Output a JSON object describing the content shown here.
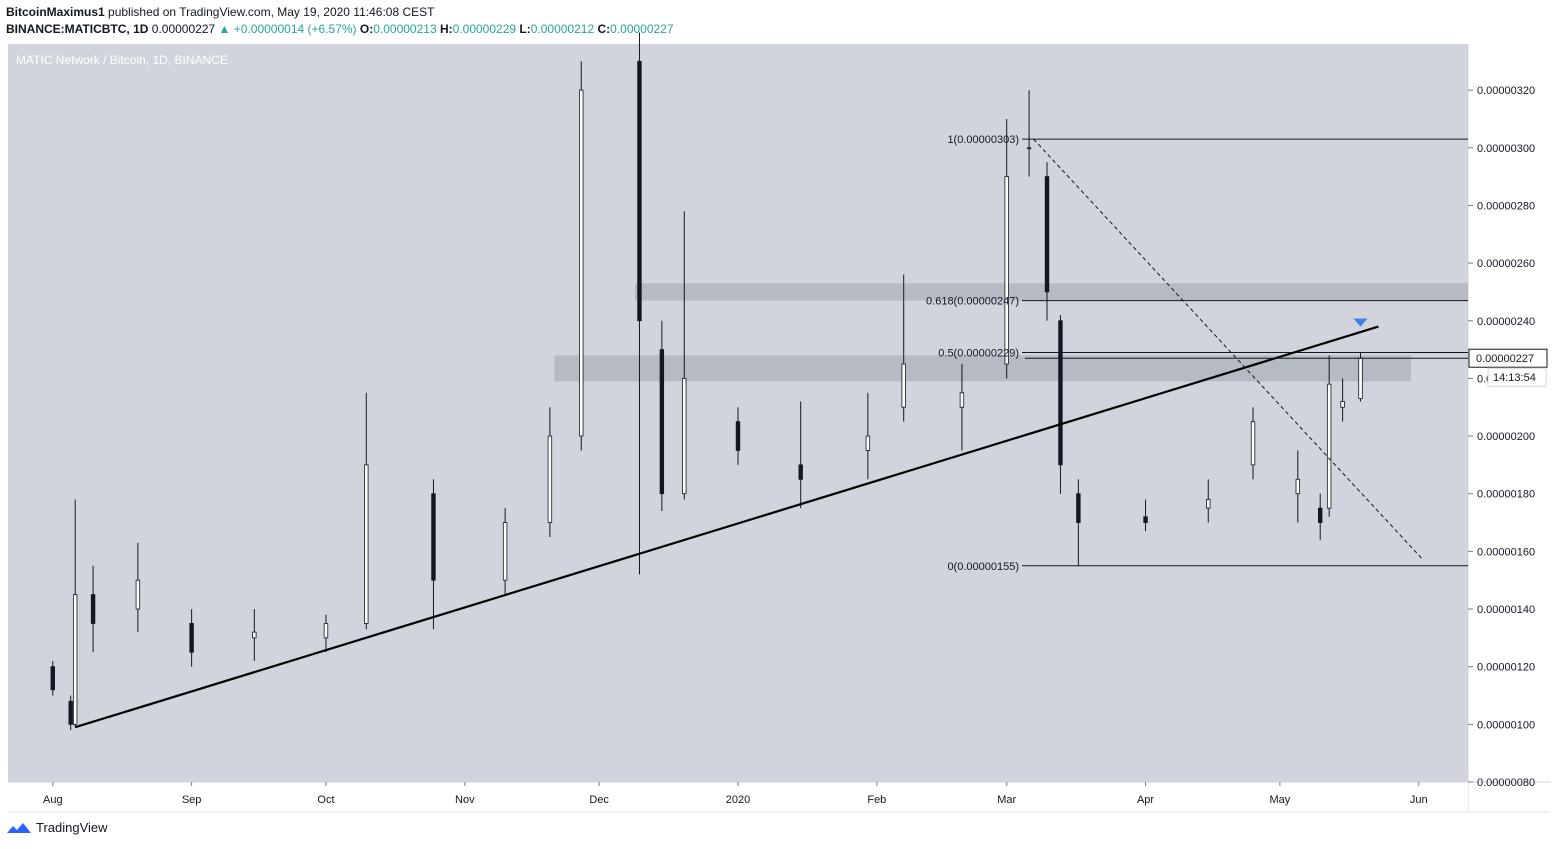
{
  "header": {
    "line1_author": "BitcoinMaximus1",
    "line1_rest": " published on TradingView.com, May 19, 2020 11:46:08 CEST",
    "symbol": "BINANCE:MATICBTC, 1D",
    "last": "0.00000227",
    "change": "+0.00000014 (+6.57%)",
    "o_label": "O:",
    "o_val": "0.00000213",
    "h_label": "H:",
    "h_val": "0.00000229",
    "l_label": "L:",
    "l_val": "0.00000212",
    "c_label": "C:",
    "c_val": "0.00000227"
  },
  "footer": {
    "brand": "TradingView"
  },
  "colors": {
    "plot_bg": "#d1d4dc",
    "zone": "#b2b5be",
    "candle": "#131722",
    "marker": "#2962ff",
    "accent": "#2962ff"
  },
  "chart_data": {
    "type": "candlestick",
    "title": "MATIC Network / Bitcoin, 1D, BINANCE",
    "price_axis_ticks": [
      "0.00000320",
      "0.00000300",
      "0.00000280",
      "0.00000260",
      "0.00000240",
      "0.00000220",
      "0.00000200",
      "0.00000180",
      "0.00000160",
      "0.00000140",
      "0.00000120",
      "0.00000100",
      "0.00000080"
    ],
    "time_axis_ticks": [
      "Aug",
      "Sep",
      "Oct",
      "Nov",
      "Dec",
      "2020",
      "Feb",
      "Mar",
      "Apr",
      "May",
      "Jun"
    ],
    "last_price_label": "0.00000227",
    "countdown_label": "14:13:54",
    "fib_levels": [
      {
        "label": "1(0.00000303)",
        "price": 3.03e-06
      },
      {
        "label": "0.618(0.00000247)",
        "price": 2.47e-06
      },
      {
        "label": "0.5(0.00000229)",
        "price": 2.29e-06
      },
      {
        "label": "0(0.00000155)",
        "price": 1.55e-06
      }
    ],
    "resistance_zones": [
      {
        "low": 2.47e-06,
        "high": 2.53e-06
      },
      {
        "low": 2.19e-06,
        "high": 2.28e-06
      }
    ],
    "ascending_trendline": {
      "from": {
        "date": "2019-08-06",
        "price": 9.9e-07
      },
      "to": {
        "date": "2020-05-23",
        "price": 2.38e-06
      }
    },
    "descending_trendline": {
      "from": {
        "date": "2020-03-07",
        "price": 3.03e-06
      },
      "to": {
        "date": "2020-06-02",
        "price": 1.57e-06
      }
    },
    "candles": [
      [
        "2019-08-01",
        1.2e-06,
        1.22e-06,
        1.1e-06,
        1.12e-06
      ],
      [
        "2019-08-05",
        1.08e-06,
        1.1e-06,
        9.8e-07,
        1e-06
      ],
      [
        "2019-08-06",
        1e-06,
        1.78e-06,
        9.9e-07,
        1.45e-06
      ],
      [
        "2019-08-10",
        1.45e-06,
        1.55e-06,
        1.25e-06,
        1.35e-06
      ],
      [
        "2019-08-20",
        1.4e-06,
        1.63e-06,
        1.32e-06,
        1.5e-06
      ],
      [
        "2019-09-01",
        1.35e-06,
        1.4e-06,
        1.2e-06,
        1.25e-06
      ],
      [
        "2019-09-15",
        1.3e-06,
        1.4e-06,
        1.22e-06,
        1.32e-06
      ],
      [
        "2019-10-01",
        1.3e-06,
        1.38e-06,
        1.25e-06,
        1.35e-06
      ],
      [
        "2019-10-10",
        1.35e-06,
        2.15e-06,
        1.33e-06,
        1.9e-06
      ],
      [
        "2019-10-25",
        1.8e-06,
        1.85e-06,
        1.33e-06,
        1.5e-06
      ],
      [
        "2019-11-10",
        1.5e-06,
        1.75e-06,
        1.45e-06,
        1.7e-06
      ],
      [
        "2019-11-20",
        1.7e-06,
        2.1e-06,
        1.65e-06,
        2e-06
      ],
      [
        "2019-11-27",
        2e-06,
        3.3e-06,
        1.95e-06,
        3.2e-06
      ],
      [
        "2019-12-10",
        3.3e-06,
        3.4e-06,
        1.52e-06,
        2.4e-06
      ],
      [
        "2019-12-15",
        2.3e-06,
        2.4e-06,
        1.74e-06,
        1.8e-06
      ],
      [
        "2019-12-20",
        1.8e-06,
        2.78e-06,
        1.78e-06,
        2.2e-06
      ],
      [
        "2020-01-01",
        2.05e-06,
        2.1e-06,
        1.9e-06,
        1.95e-06
      ],
      [
        "2020-01-15",
        1.9e-06,
        2.12e-06,
        1.75e-06,
        1.85e-06
      ],
      [
        "2020-01-30",
        1.95e-06,
        2.15e-06,
        1.85e-06,
        2e-06
      ],
      [
        "2020-02-07",
        2.1e-06,
        2.56e-06,
        2.05e-06,
        2.25e-06
      ],
      [
        "2020-02-20",
        2.1e-06,
        2.25e-06,
        1.95e-06,
        2.15e-06
      ],
      [
        "2020-03-01",
        2.25e-06,
        3.1e-06,
        2.2e-06,
        2.9e-06
      ],
      [
        "2020-03-06",
        3e-06,
        3.2e-06,
        2.9e-06,
        3e-06
      ],
      [
        "2020-03-10",
        2.9e-06,
        2.95e-06,
        2.4e-06,
        2.5e-06
      ],
      [
        "2020-03-13",
        2.4e-06,
        2.42e-06,
        1.8e-06,
        1.9e-06
      ],
      [
        "2020-03-17",
        1.8e-06,
        1.85e-06,
        1.55e-06,
        1.7e-06
      ],
      [
        "2020-04-01",
        1.72e-06,
        1.78e-06,
        1.67e-06,
        1.7e-06
      ],
      [
        "2020-04-15",
        1.75e-06,
        1.85e-06,
        1.7e-06,
        1.78e-06
      ],
      [
        "2020-04-25",
        1.9e-06,
        2.1e-06,
        1.85e-06,
        2.05e-06
      ],
      [
        "2020-05-05",
        1.8e-06,
        1.95e-06,
        1.7e-06,
        1.85e-06
      ],
      [
        "2020-05-10",
        1.75e-06,
        1.8e-06,
        1.64e-06,
        1.7e-06
      ],
      [
        "2020-05-12",
        1.75e-06,
        2.28e-06,
        1.72e-06,
        2.18e-06
      ],
      [
        "2020-05-15",
        2.1e-06,
        2.2e-06,
        2.05e-06,
        2.12e-06
      ],
      [
        "2020-05-19",
        2.13e-06,
        2.29e-06,
        2.12e-06,
        2.27e-06
      ]
    ]
  }
}
